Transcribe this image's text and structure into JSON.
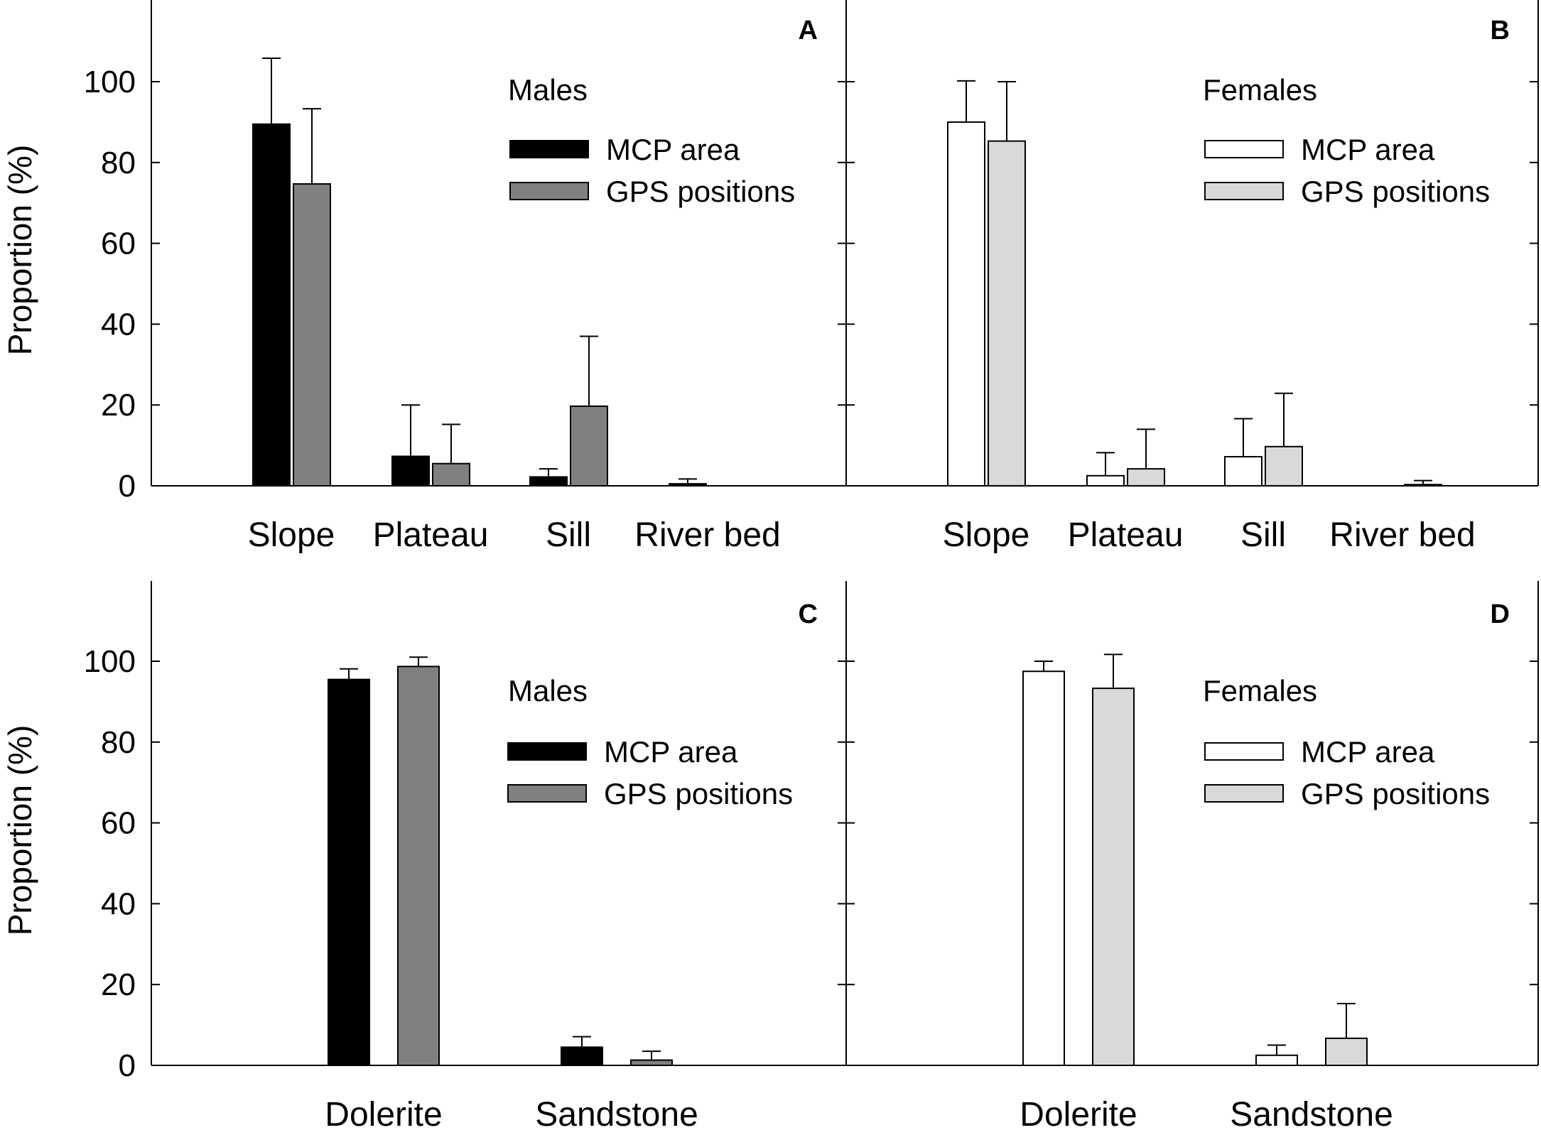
{
  "chart_data": [
    {
      "panel": "A",
      "type": "bar",
      "categories": [
        "Slope",
        "Plateau",
        "Sill",
        "River bed"
      ],
      "legend_title": "Males",
      "ylabel": "Proportion (%)",
      "ylim": [
        0,
        118
      ],
      "yticks": [
        0,
        20,
        40,
        60,
        80,
        100
      ],
      "series": [
        {
          "name": "MCP area",
          "color": "#000000",
          "values": [
            89.5,
            7.3,
            2.2,
            0.5
          ],
          "errors": [
            16.3,
            12.7,
            2.0,
            1.2
          ]
        },
        {
          "name": "GPS positions",
          "color": "#808080",
          "values": [
            74.7,
            5.5,
            19.7,
            0
          ],
          "errors": [
            18.6,
            9.7,
            17.3,
            0
          ]
        }
      ]
    },
    {
      "panel": "B",
      "type": "bar",
      "categories": [
        "Slope",
        "Plateau",
        "Sill",
        "River bed"
      ],
      "legend_title": "Females",
      "ylabel": "",
      "ylim": [
        0,
        118
      ],
      "yticks": [
        0,
        20,
        40,
        60,
        80,
        100
      ],
      "series": [
        {
          "name": "MCP area",
          "color": "#ffffff",
          "values": [
            90.0,
            2.5,
            7.2,
            0
          ],
          "errors": [
            10.2,
            5.7,
            9.4,
            0
          ]
        },
        {
          "name": "GPS positions",
          "color": "#d9d9d9",
          "values": [
            85.3,
            4.2,
            9.7,
            0.3
          ],
          "errors": [
            14.7,
            9.8,
            13.2,
            1.0
          ]
        }
      ]
    },
    {
      "panel": "C",
      "type": "bar",
      "categories": [
        "Dolerite",
        "Sandstone"
      ],
      "legend_title": "Males",
      "ylabel": "Proportion (%)",
      "ylim": [
        0,
        118
      ],
      "yticks": [
        0,
        20,
        40,
        60,
        80,
        100
      ],
      "series": [
        {
          "name": "MCP area",
          "color": "#000000",
          "values": [
            95.5,
            4.5
          ],
          "errors": [
            2.6,
            2.6
          ]
        },
        {
          "name": "GPS positions",
          "color": "#808080",
          "values": [
            98.7,
            1.3
          ],
          "errors": [
            2.3,
            2.2
          ]
        }
      ]
    },
    {
      "panel": "D",
      "type": "bar",
      "categories": [
        "Dolerite",
        "Sandstone"
      ],
      "legend_title": "Females",
      "ylabel": "",
      "ylim": [
        0,
        118
      ],
      "yticks": [
        0,
        20,
        40,
        60,
        80,
        100
      ],
      "series": [
        {
          "name": "MCP area",
          "color": "#ffffff",
          "values": [
            97.5,
            2.5
          ],
          "errors": [
            2.5,
            2.5
          ]
        },
        {
          "name": "GPS positions",
          "color": "#d9d9d9",
          "values": [
            93.3,
            6.7
          ],
          "errors": [
            8.4,
            8.6
          ]
        }
      ]
    }
  ]
}
